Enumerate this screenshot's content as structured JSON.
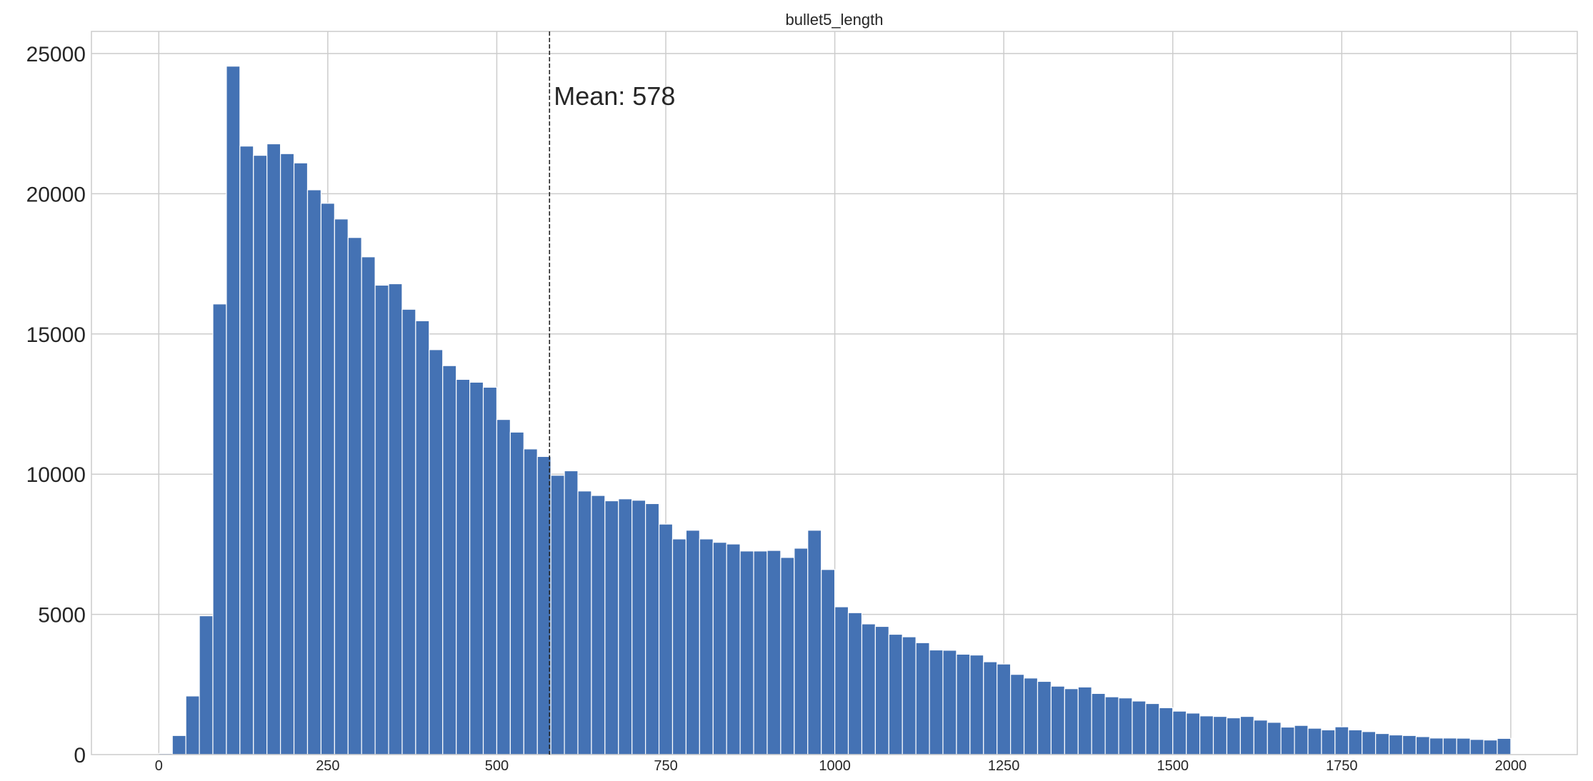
{
  "chart_data": {
    "type": "bar",
    "subtype": "histogram",
    "title": "bullet5_length",
    "xlabel": "",
    "ylabel": "",
    "xlim": [
      -100,
      2100
    ],
    "ylim": [
      0,
      25800
    ],
    "xticks": [
      0,
      250,
      500,
      750,
      1000,
      1250,
      1500,
      1750,
      2000
    ],
    "xtick_labels": [
      "0",
      "250",
      "500",
      "750",
      "1000",
      "1250",
      "1500",
      "1750",
      "2000"
    ],
    "yticks": [
      0,
      5000,
      10000,
      15000,
      20000,
      25000
    ],
    "ytick_labels": [
      "0",
      "5000",
      "10000",
      "15000",
      "20000",
      "25000"
    ],
    "grid": true,
    "legend": null,
    "bar_color": "#4472b4",
    "bin_start": 0,
    "bin_width": 20,
    "bin_count": 100,
    "values": [
      40,
      680,
      2090,
      4950,
      16070,
      24550,
      21700,
      21370,
      21780,
      21430,
      21100,
      20140,
      19660,
      19100,
      18440,
      17750,
      16740,
      16790,
      15880,
      15470,
      14440,
      13870,
      13380,
      13280,
      13100,
      11950,
      11500,
      10900,
      10630,
      9960,
      10120,
      9400,
      9240,
      9050,
      9120,
      9070,
      8950,
      8220,
      7690,
      8000,
      7690,
      7570,
      7510,
      7260,
      7260,
      7280,
      7030,
      7360,
      8000,
      6600,
      5270,
      5060,
      4660,
      4570,
      4290,
      4200,
      3990,
      3730,
      3720,
      3580,
      3550,
      3310,
      3230,
      2860,
      2730,
      2610,
      2440,
      2350,
      2410,
      2180,
      2060,
      2020,
      1910,
      1820,
      1670,
      1550,
      1480,
      1380,
      1360,
      1310,
      1360,
      1230,
      1150,
      980,
      1040,
      940,
      880,
      990,
      880,
      820,
      750,
      700,
      680,
      640,
      590,
      590,
      585,
      540,
      520,
      577
    ],
    "annotations": [
      {
        "type": "vline",
        "x": 578,
        "style": "dashed",
        "color": "#222222"
      },
      {
        "type": "text",
        "text": "Mean: 578",
        "x": 578,
        "y": 23300
      }
    ]
  }
}
